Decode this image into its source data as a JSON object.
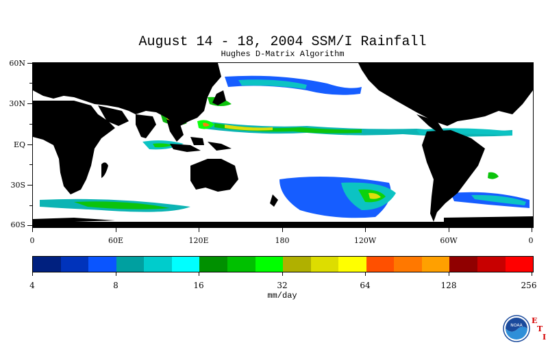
{
  "title": "August 14 - 18, 2004 SSM/I Rainfall",
  "subtitle": "Hughes D-Matrix Algorithm",
  "map": {
    "lat_labels": [
      "60N",
      "30N",
      "EQ",
      "30S",
      "60S"
    ],
    "lon_labels": [
      "0",
      "60E",
      "120E",
      "180",
      "120W",
      "60W",
      "0"
    ],
    "colors": {
      "land": "#000000",
      "ocean": "#ffffff"
    }
  },
  "colorbar": {
    "colors": [
      "#00207f",
      "#0033bb",
      "#0a55ff",
      "#00a0a0",
      "#00cccc",
      "#00ffff",
      "#009000",
      "#00c000",
      "#00ff00",
      "#b0b000",
      "#dddd00",
      "#ffff00",
      "#ff5000",
      "#ff7800",
      "#ffa000",
      "#900000",
      "#c80000",
      "#ff0000"
    ],
    "tick_labels": [
      "4",
      "8",
      "16",
      "32",
      "64",
      "128",
      "256"
    ],
    "units": "mm/day"
  },
  "logo": {
    "name": "NOAA",
    "text": "NOAA",
    "letters": [
      "E",
      "T",
      "I"
    ]
  }
}
